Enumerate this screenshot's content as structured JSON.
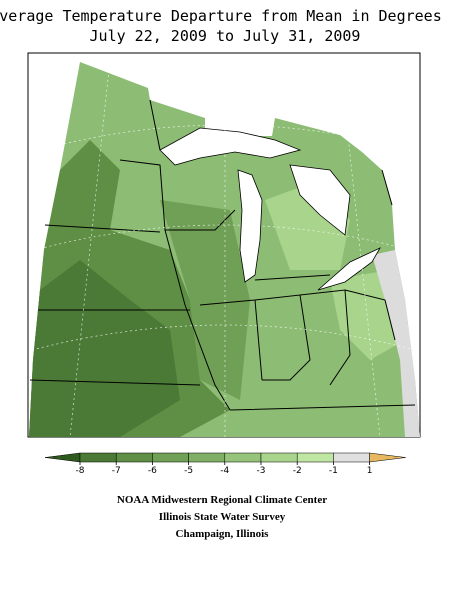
{
  "header": {
    "title": "Average Temperature Departure from Mean in Degrees F",
    "subtitle": "July 22, 2009 to July 31, 2009"
  },
  "legend": {
    "ticks": [
      -8,
      -7,
      -6,
      -5,
      -4,
      -3,
      -2,
      -1,
      1
    ],
    "colors": [
      "#2f5a1e",
      "#4a7a35",
      "#5e8f45",
      "#6fa055",
      "#80b066",
      "#95c47a",
      "#a8d48c",
      "#bfe6a2",
      "#e0e0e0",
      "#e8b860"
    ]
  },
  "credits": [
    "NOAA Midwestern Regional Climate Center",
    "Illinois State Water Survey",
    "Champaign, Illinois"
  ]
}
